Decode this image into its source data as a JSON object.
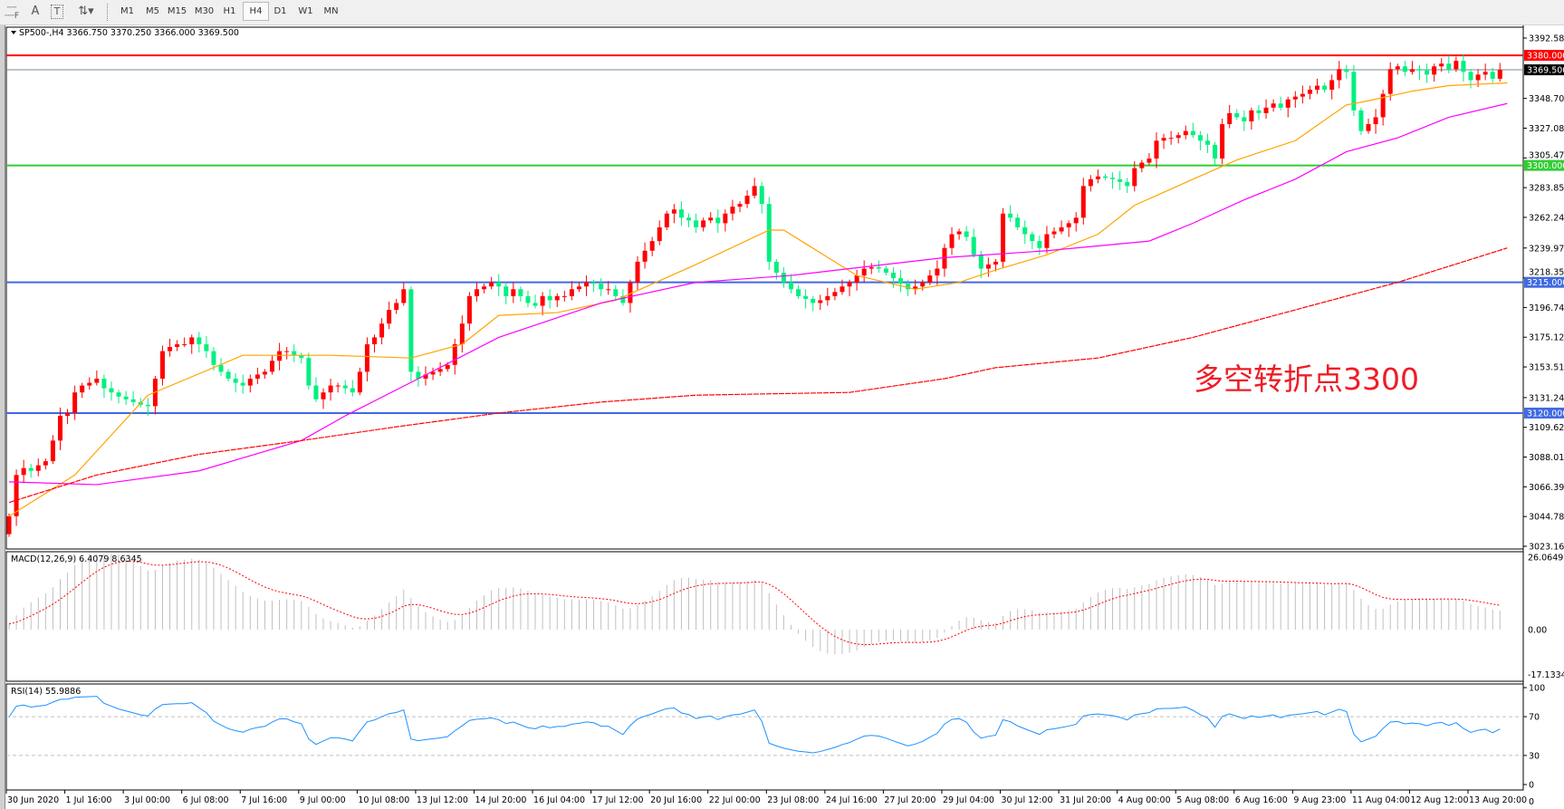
{
  "toolbar": {
    "icons": [
      "periods-separator-icon",
      "text-label-icon",
      "text-box-icon",
      "arrows-icon"
    ],
    "text_icon": "A",
    "textbox_icon": "T",
    "timeframes": [
      "M1",
      "M5",
      "M15",
      "M30",
      "H1",
      "H4",
      "D1",
      "W1",
      "MN"
    ],
    "active_timeframe": "H4"
  },
  "chart": {
    "header": "SP500-,H4  3366.750 3370.250 3366.000 3369.500",
    "annotation": "多空转折点3300",
    "colors": {
      "bull": "#ff0000",
      "bear": "#00f080",
      "ma_fast": "#ffa500",
      "ma_mid": "#ff00ff",
      "ma_slow": "#ff0000",
      "macd_hist": "#c0c0c0",
      "macd_signal": "#ff0000",
      "rsi": "#1e90ff"
    },
    "levels": [
      {
        "value": 3380.0,
        "label": "3380.000",
        "color": "#ff0000"
      },
      {
        "value": 3369.5,
        "label": "3369.500",
        "color": "#000000",
        "line_color": "#778899"
      },
      {
        "value": 3300.0,
        "label": "3300.000",
        "color": "#32cd32"
      },
      {
        "value": 3215.0,
        "label": "3215.000",
        "color": "#4169e1"
      },
      {
        "value": 3120.0,
        "label": "3120.000",
        "color": "#4169e1"
      }
    ],
    "price_ticks": [
      "3392.585",
      "3348.700",
      "3327.085",
      "3305.470",
      "3283.855",
      "3262.240",
      "3239.970",
      "3218.355",
      "3196.740",
      "3175.125",
      "3153.510",
      "3131.240",
      "3109.625",
      "3088.010",
      "3066.395",
      "3044.780",
      "3023.165"
    ],
    "macd": {
      "title": "MACD(12,26,9) 6.4079 8.6345",
      "ticks": [
        "26.0649",
        "0.00",
        "-17.1334"
      ]
    },
    "rsi": {
      "title": "RSI(14) 55.9886",
      "ticks": [
        "100",
        "70",
        "30",
        "0"
      ]
    },
    "time_labels": [
      "30 Jun 2020",
      "1 Jul 16:00",
      "3 Jul 00:00",
      "6 Jul 08:00",
      "7 Jul 16:00",
      "9 Jul 00:00",
      "10 Jul 08:00",
      "13 Jul 12:00",
      "14 Jul 20:00",
      "16 Jul 04:00",
      "17 Jul 12:00",
      "20 Jul 16:00",
      "22 Jul 00:00",
      "23 Jul 08:00",
      "24 Jul 16:00",
      "27 Jul 20:00",
      "29 Jul 04:00",
      "30 Jul 12:00",
      "31 Jul 20:00",
      "4 Aug 00:00",
      "5 Aug 08:00",
      "6 Aug 16:00",
      "9 Aug 23:00",
      "11 Aug 04:00",
      "12 Aug 12:00",
      "13 Aug 20:00"
    ],
    "axis_corner": "0"
  },
  "chart_data": {
    "type": "candlestick",
    "symbol": "SP500-",
    "timeframe": "H4",
    "ylim": [
      3023.165,
      3392.585
    ],
    "first_open": 3032,
    "close": [
      3045,
      3075,
      3080,
      3078,
      3082,
      3085,
      3100,
      3118,
      3120,
      3135,
      3140,
      3142,
      3145,
      3138,
      3135,
      3132,
      3130,
      3128,
      3126,
      3125,
      3145,
      3165,
      3168,
      3170,
      3170,
      3175,
      3170,
      3165,
      3155,
      3150,
      3145,
      3142,
      3140,
      3145,
      3148,
      3150,
      3158,
      3165,
      3165,
      3162,
      3160,
      3140,
      3130,
      3135,
      3140,
      3140,
      3138,
      3135,
      3150,
      3170,
      3175,
      3185,
      3195,
      3200,
      3210,
      3150,
      3145,
      3148,
      3150,
      3152,
      3155,
      3170,
      3185,
      3205,
      3210,
      3212,
      3215,
      3212,
      3205,
      3210,
      3205,
      3200,
      3198,
      3205,
      3202,
      3205,
      3205,
      3210,
      3212,
      3215,
      3214,
      3210,
      3210,
      3205,
      3200,
      3215,
      3230,
      3238,
      3245,
      3255,
      3265,
      3268,
      3262,
      3260,
      3255,
      3260,
      3262,
      3258,
      3265,
      3270,
      3272,
      3278,
      3285,
      3272,
      3230,
      3222,
      3215,
      3210,
      3205,
      3203,
      3200,
      3202,
      3205,
      3208,
      3212,
      3215,
      3220,
      3225,
      3226,
      3225,
      3222,
      3218,
      3214,
      3210,
      3212,
      3215,
      3220,
      3225,
      3240,
      3250,
      3252,
      3248,
      3235,
      3225,
      3228,
      3230,
      3265,
      3262,
      3255,
      3250,
      3245,
      3240,
      3250,
      3252,
      3255,
      3258,
      3262,
      3285,
      3290,
      3292,
      3291,
      3290,
      3288,
      3285,
      3298,
      3302,
      3305,
      3318,
      3320,
      3320,
      3322,
      3325,
      3322,
      3318,
      3315,
      3305,
      3330,
      3338,
      3335,
      3332,
      3340,
      3338,
      3342,
      3345,
      3342,
      3348,
      3350,
      3352,
      3355,
      3358,
      3355,
      3362,
      3370,
      3368,
      3340,
      3325,
      3330,
      3335,
      3352,
      3370,
      3372,
      3368,
      3370,
      3369,
      3366,
      3372,
      3374,
      3370,
      3376,
      3368,
      3362,
      3366,
      3368,
      3363,
      3369.5
    ],
    "moving_averages": [
      {
        "key": "ma_fast",
        "points": [
          [
            0,
            3045
          ],
          [
            9,
            3075
          ],
          [
            19,
            3133
          ],
          [
            32,
            3162
          ],
          [
            44,
            3162
          ],
          [
            55,
            3160
          ],
          [
            62,
            3170
          ],
          [
            67,
            3191
          ],
          [
            75,
            3193
          ],
          [
            83,
            3202
          ],
          [
            94,
            3228
          ],
          [
            104,
            3253
          ],
          [
            106,
            3253
          ],
          [
            116,
            3220
          ],
          [
            124,
            3210
          ],
          [
            130,
            3215
          ],
          [
            135,
            3224
          ],
          [
            142,
            3235
          ],
          [
            149,
            3250
          ],
          [
            154,
            3271
          ],
          [
            162,
            3290
          ],
          [
            168,
            3304
          ],
          [
            176,
            3318
          ],
          [
            183,
            3344
          ],
          [
            186,
            3347
          ],
          [
            192,
            3354
          ],
          [
            197,
            3358
          ],
          [
            205,
            3360
          ]
        ]
      },
      {
        "key": "ma_mid",
        "points": [
          [
            0,
            3070
          ],
          [
            12,
            3068
          ],
          [
            26,
            3078
          ],
          [
            40,
            3100
          ],
          [
            46,
            3118
          ],
          [
            56,
            3145
          ],
          [
            67,
            3175
          ],
          [
            81,
            3200
          ],
          [
            94,
            3215
          ],
          [
            107,
            3220
          ],
          [
            115,
            3225
          ],
          [
            128,
            3233
          ],
          [
            142,
            3238
          ],
          [
            156,
            3245
          ],
          [
            162,
            3258
          ],
          [
            169,
            3275
          ],
          [
            176,
            3290
          ],
          [
            183,
            3310
          ],
          [
            190,
            3320
          ],
          [
            197,
            3335
          ],
          [
            205,
            3345
          ]
        ]
      },
      {
        "key": "ma_slow",
        "points": [
          [
            0,
            3055
          ],
          [
            12,
            3075
          ],
          [
            26,
            3090
          ],
          [
            40,
            3100
          ],
          [
            53,
            3110
          ],
          [
            67,
            3120
          ],
          [
            81,
            3128
          ],
          [
            94,
            3133
          ],
          [
            115,
            3135
          ],
          [
            128,
            3145
          ],
          [
            135,
            3153
          ],
          [
            149,
            3160
          ],
          [
            162,
            3175
          ],
          [
            176,
            3195
          ],
          [
            190,
            3215
          ],
          [
            205,
            3240
          ]
        ]
      }
    ]
  }
}
